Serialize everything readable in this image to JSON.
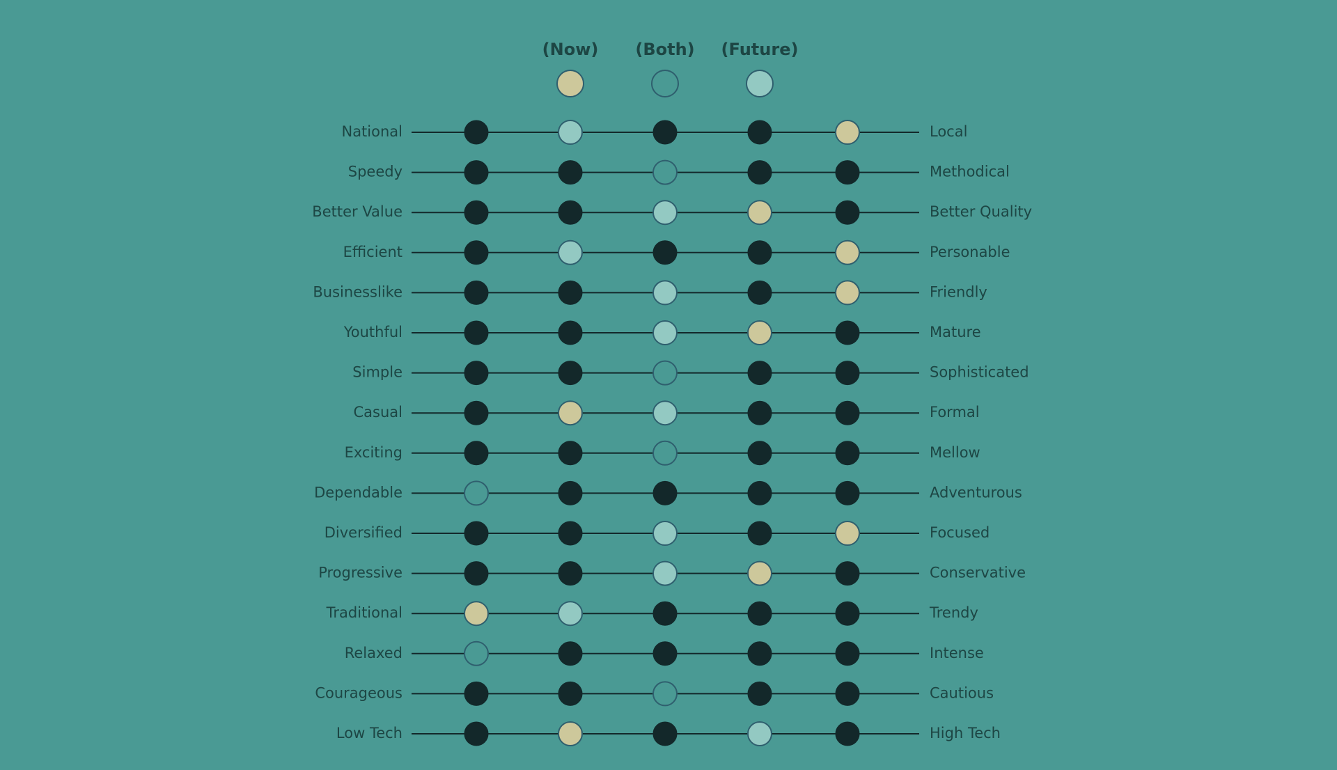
{
  "legend": [
    {
      "label": "(Now)",
      "color": "#cdc89b",
      "positions": [
        4,
        null,
        3,
        4,
        4,
        3,
        null,
        1,
        null,
        null,
        4,
        3,
        0,
        null,
        null,
        1
      ]
    },
    {
      "label": "(Both)",
      "color": "#4a9a94",
      "positions": [
        null,
        2,
        null,
        null,
        null,
        null,
        2,
        null,
        2,
        0,
        null,
        null,
        null,
        0,
        2,
        null
      ]
    },
    {
      "label": "(Future)",
      "color": "#93c9c2",
      "positions": [
        1,
        null,
        2,
        1,
        2,
        2,
        null,
        2,
        null,
        null,
        2,
        2,
        1,
        null,
        null,
        3
      ]
    }
  ],
  "empty_color": "#13282a",
  "rows": [
    {
      "left": "National",
      "right": "Local"
    },
    {
      "left": "Speedy",
      "right": "Methodical"
    },
    {
      "left": "Better Value",
      "right": "Better Quality"
    },
    {
      "left": "Efficient",
      "right": "Personable"
    },
    {
      "left": "Businesslike",
      "right": "Friendly"
    },
    {
      "left": "Youthful",
      "right": "Mature"
    },
    {
      "left": "Simple",
      "right": "Sophisticated"
    },
    {
      "left": "Casual",
      "right": "Formal"
    },
    {
      "left": "Exciting",
      "right": "Mellow"
    },
    {
      "left": "Dependable",
      "right": "Adventurous"
    },
    {
      "left": "Diversified",
      "right": "Focused"
    },
    {
      "left": "Progressive",
      "right": "Conservative"
    },
    {
      "left": "Traditional",
      "right": "Trendy"
    },
    {
      "left": "Relaxed",
      "right": "Intense"
    },
    {
      "left": "Courageous",
      "right": "Cautious"
    },
    {
      "left": "Low Tech",
      "right": "High Tech"
    }
  ]
}
